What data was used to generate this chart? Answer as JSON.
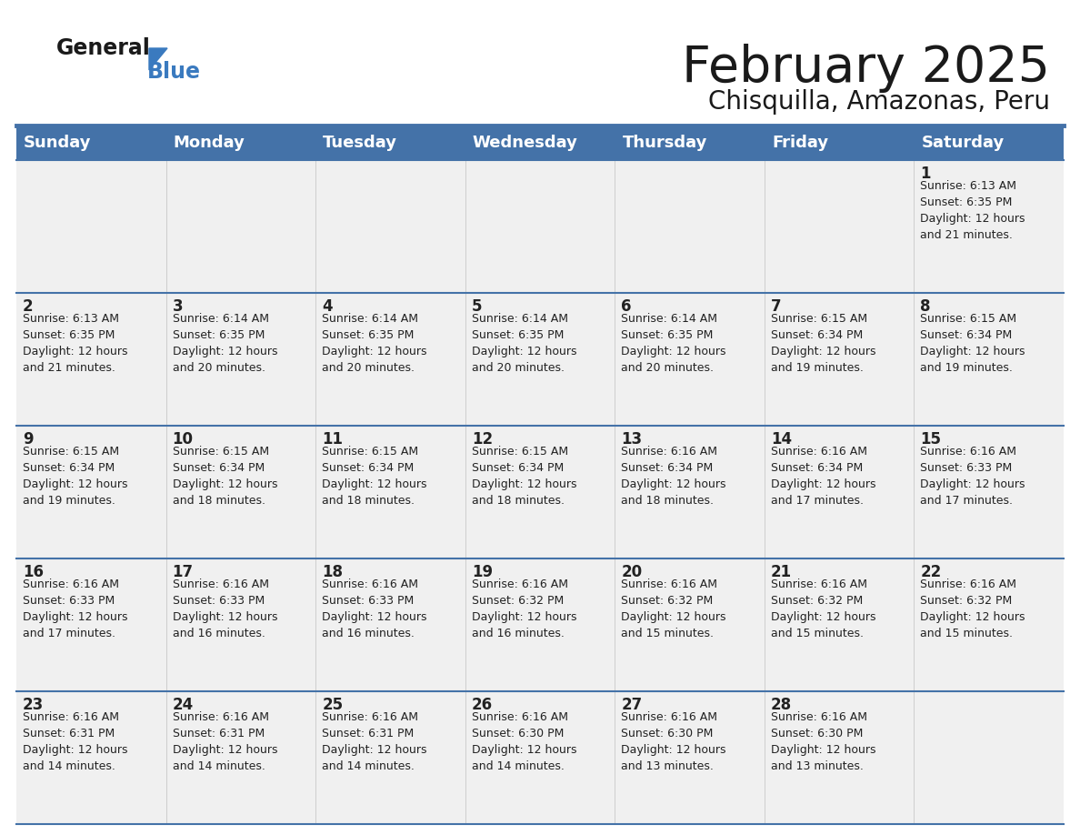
{
  "title": "February 2025",
  "subtitle": "Chisquilla, Amazonas, Peru",
  "header_color": "#4472a8",
  "header_text_color": "#ffffff",
  "days_of_week": [
    "Sunday",
    "Monday",
    "Tuesday",
    "Wednesday",
    "Thursday",
    "Friday",
    "Saturday"
  ],
  "bg_color": "#ffffff",
  "cell_bg": "#f0f0f0",
  "row_sep_color": "#4472a8",
  "col_sep_color": "#c0c0c0",
  "day_num_color": "#222222",
  "text_color": "#222222",
  "calendar": [
    [
      {
        "day": null,
        "text": ""
      },
      {
        "day": null,
        "text": ""
      },
      {
        "day": null,
        "text": ""
      },
      {
        "day": null,
        "text": ""
      },
      {
        "day": null,
        "text": ""
      },
      {
        "day": null,
        "text": ""
      },
      {
        "day": 1,
        "text": "Sunrise: 6:13 AM\nSunset: 6:35 PM\nDaylight: 12 hours\nand 21 minutes."
      }
    ],
    [
      {
        "day": 2,
        "text": "Sunrise: 6:13 AM\nSunset: 6:35 PM\nDaylight: 12 hours\nand 21 minutes."
      },
      {
        "day": 3,
        "text": "Sunrise: 6:14 AM\nSunset: 6:35 PM\nDaylight: 12 hours\nand 20 minutes."
      },
      {
        "day": 4,
        "text": "Sunrise: 6:14 AM\nSunset: 6:35 PM\nDaylight: 12 hours\nand 20 minutes."
      },
      {
        "day": 5,
        "text": "Sunrise: 6:14 AM\nSunset: 6:35 PM\nDaylight: 12 hours\nand 20 minutes."
      },
      {
        "day": 6,
        "text": "Sunrise: 6:14 AM\nSunset: 6:35 PM\nDaylight: 12 hours\nand 20 minutes."
      },
      {
        "day": 7,
        "text": "Sunrise: 6:15 AM\nSunset: 6:34 PM\nDaylight: 12 hours\nand 19 minutes."
      },
      {
        "day": 8,
        "text": "Sunrise: 6:15 AM\nSunset: 6:34 PM\nDaylight: 12 hours\nand 19 minutes."
      }
    ],
    [
      {
        "day": 9,
        "text": "Sunrise: 6:15 AM\nSunset: 6:34 PM\nDaylight: 12 hours\nand 19 minutes."
      },
      {
        "day": 10,
        "text": "Sunrise: 6:15 AM\nSunset: 6:34 PM\nDaylight: 12 hours\nand 18 minutes."
      },
      {
        "day": 11,
        "text": "Sunrise: 6:15 AM\nSunset: 6:34 PM\nDaylight: 12 hours\nand 18 minutes."
      },
      {
        "day": 12,
        "text": "Sunrise: 6:15 AM\nSunset: 6:34 PM\nDaylight: 12 hours\nand 18 minutes."
      },
      {
        "day": 13,
        "text": "Sunrise: 6:16 AM\nSunset: 6:34 PM\nDaylight: 12 hours\nand 18 minutes."
      },
      {
        "day": 14,
        "text": "Sunrise: 6:16 AM\nSunset: 6:34 PM\nDaylight: 12 hours\nand 17 minutes."
      },
      {
        "day": 15,
        "text": "Sunrise: 6:16 AM\nSunset: 6:33 PM\nDaylight: 12 hours\nand 17 minutes."
      }
    ],
    [
      {
        "day": 16,
        "text": "Sunrise: 6:16 AM\nSunset: 6:33 PM\nDaylight: 12 hours\nand 17 minutes."
      },
      {
        "day": 17,
        "text": "Sunrise: 6:16 AM\nSunset: 6:33 PM\nDaylight: 12 hours\nand 16 minutes."
      },
      {
        "day": 18,
        "text": "Sunrise: 6:16 AM\nSunset: 6:33 PM\nDaylight: 12 hours\nand 16 minutes."
      },
      {
        "day": 19,
        "text": "Sunrise: 6:16 AM\nSunset: 6:32 PM\nDaylight: 12 hours\nand 16 minutes."
      },
      {
        "day": 20,
        "text": "Sunrise: 6:16 AM\nSunset: 6:32 PM\nDaylight: 12 hours\nand 15 minutes."
      },
      {
        "day": 21,
        "text": "Sunrise: 6:16 AM\nSunset: 6:32 PM\nDaylight: 12 hours\nand 15 minutes."
      },
      {
        "day": 22,
        "text": "Sunrise: 6:16 AM\nSunset: 6:32 PM\nDaylight: 12 hours\nand 15 minutes."
      }
    ],
    [
      {
        "day": 23,
        "text": "Sunrise: 6:16 AM\nSunset: 6:31 PM\nDaylight: 12 hours\nand 14 minutes."
      },
      {
        "day": 24,
        "text": "Sunrise: 6:16 AM\nSunset: 6:31 PM\nDaylight: 12 hours\nand 14 minutes."
      },
      {
        "day": 25,
        "text": "Sunrise: 6:16 AM\nSunset: 6:31 PM\nDaylight: 12 hours\nand 14 minutes."
      },
      {
        "day": 26,
        "text": "Sunrise: 6:16 AM\nSunset: 6:30 PM\nDaylight: 12 hours\nand 14 minutes."
      },
      {
        "day": 27,
        "text": "Sunrise: 6:16 AM\nSunset: 6:30 PM\nDaylight: 12 hours\nand 13 minutes."
      },
      {
        "day": 28,
        "text": "Sunrise: 6:16 AM\nSunset: 6:30 PM\nDaylight: 12 hours\nand 13 minutes."
      },
      {
        "day": null,
        "text": ""
      }
    ]
  ],
  "logo_general_fontsize": 17,
  "logo_blue_fontsize": 17,
  "title_fontsize": 40,
  "subtitle_fontsize": 20,
  "header_fontsize": 13,
  "day_num_fontsize": 12,
  "cell_text_fontsize": 9
}
